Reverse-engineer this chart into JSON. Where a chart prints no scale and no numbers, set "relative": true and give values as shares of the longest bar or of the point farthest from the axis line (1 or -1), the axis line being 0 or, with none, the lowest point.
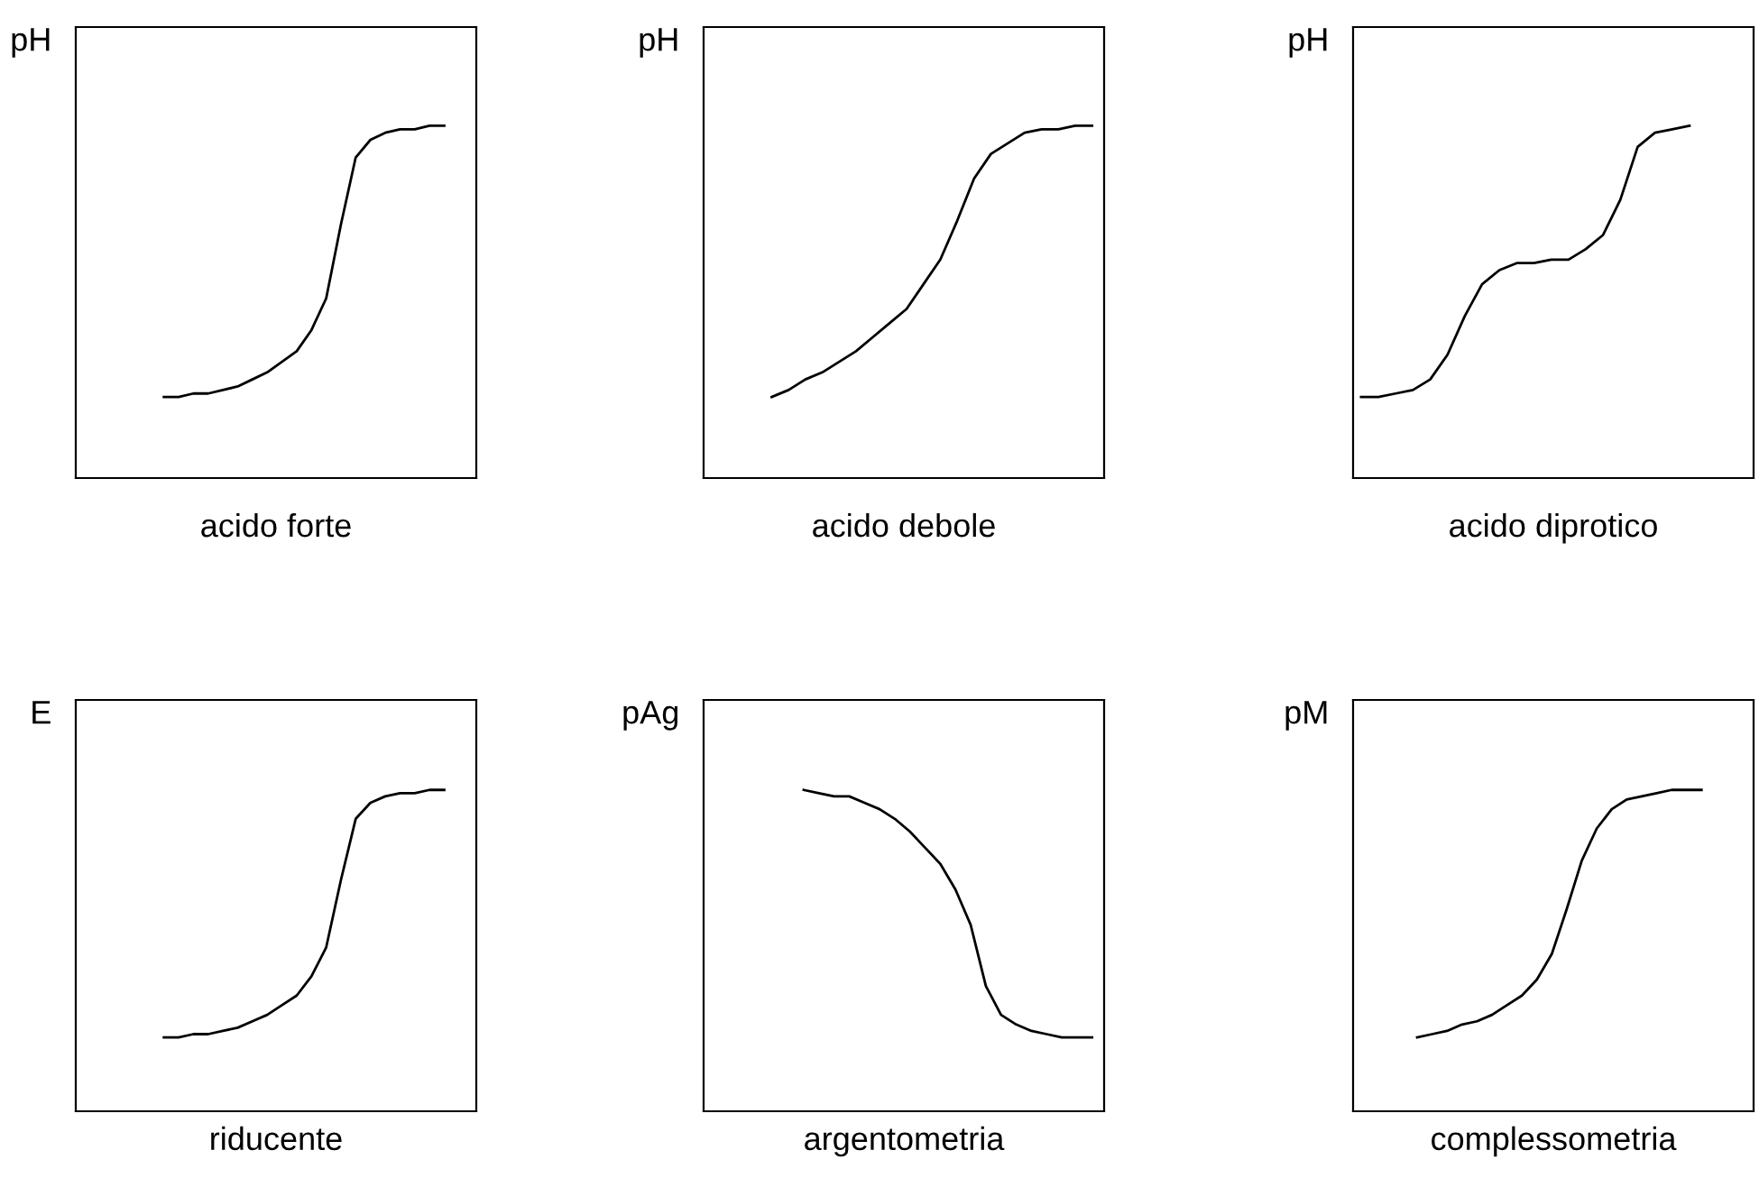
{
  "chart_data": [
    {
      "type": "line",
      "relative": true,
      "ylabel": "pH",
      "xlabel": "acido forte",
      "categories": [
        null,
        null,
        null,
        null,
        null,
        null,
        null,
        null,
        null,
        null,
        null,
        null,
        null,
        null,
        null,
        null,
        null,
        null,
        null,
        null
      ],
      "series": [
        {
          "color": "#000000",
          "values": [
            0.23,
            0.23,
            0.24,
            0.24,
            0.25,
            0.26,
            0.28,
            0.3,
            0.33,
            0.36,
            0.42,
            0.51,
            0.72,
            0.91,
            0.96,
            0.98,
            0.99,
            0.99,
            1,
            1
          ]
        }
      ]
    },
    {
      "type": "line",
      "relative": true,
      "ylabel": "pH",
      "xlabel": "acido debole",
      "categories": [
        null,
        null,
        null,
        null,
        null,
        null,
        null,
        null,
        null,
        null,
        null,
        null,
        null,
        null,
        null,
        null,
        null,
        null,
        null,
        null
      ],
      "series": [
        {
          "color": "#000000",
          "values": [
            0.23,
            0.25,
            0.28,
            0.3,
            0.33,
            0.36,
            0.4,
            0.44,
            0.48,
            0.55,
            0.62,
            0.73,
            0.85,
            0.92,
            0.95,
            0.98,
            0.99,
            0.99,
            1,
            1
          ]
        }
      ]
    },
    {
      "type": "line",
      "relative": true,
      "ylabel": "pH",
      "xlabel": "acido diprotico",
      "categories": [
        null,
        null,
        null,
        null,
        null,
        null,
        null,
        null,
        null,
        null,
        null,
        null,
        null,
        null,
        null,
        null,
        null,
        null,
        null,
        null
      ],
      "series": [
        {
          "color": "#000000",
          "values": [
            0.23,
            0.23,
            0.24,
            0.25,
            0.28,
            0.35,
            0.46,
            0.55,
            0.59,
            0.61,
            0.61,
            0.62,
            0.62,
            0.65,
            0.69,
            0.79,
            0.94,
            0.98,
            0.99,
            1
          ]
        }
      ]
    },
    {
      "type": "line",
      "relative": true,
      "ylabel": "E",
      "xlabel": "riducente",
      "categories": [
        null,
        null,
        null,
        null,
        null,
        null,
        null,
        null,
        null,
        null,
        null,
        null,
        null,
        null,
        null,
        null,
        null,
        null,
        null,
        null
      ],
      "series": [
        {
          "color": "#000000",
          "values": [
            0.23,
            0.23,
            0.24,
            0.24,
            0.25,
            0.26,
            0.28,
            0.3,
            0.33,
            0.36,
            0.42,
            0.51,
            0.72,
            0.91,
            0.96,
            0.98,
            0.99,
            0.99,
            1,
            1
          ]
        }
      ]
    },
    {
      "type": "line",
      "relative": true,
      "ylabel": "pAg",
      "xlabel": "argentometria",
      "categories": [
        null,
        null,
        null,
        null,
        null,
        null,
        null,
        null,
        null,
        null,
        null,
        null,
        null,
        null,
        null,
        null,
        null,
        null,
        null,
        null
      ],
      "series": [
        {
          "color": "#000000",
          "values": [
            1,
            0.99,
            0.98,
            0.98,
            0.96,
            0.94,
            0.91,
            0.87,
            0.82,
            0.77,
            0.69,
            0.58,
            0.39,
            0.3,
            0.27,
            0.25,
            0.24,
            0.23,
            0.23,
            0.23
          ]
        }
      ]
    },
    {
      "type": "line",
      "relative": true,
      "ylabel": "pM",
      "xlabel": "complessometria",
      "categories": [
        null,
        null,
        null,
        null,
        null,
        null,
        null,
        null,
        null,
        null,
        null,
        null,
        null,
        null,
        null,
        null,
        null,
        null,
        null,
        null
      ],
      "series": [
        {
          "color": "#000000",
          "values": [
            0.23,
            0.24,
            0.25,
            0.27,
            0.28,
            0.3,
            0.33,
            0.36,
            0.41,
            0.49,
            0.63,
            0.78,
            0.88,
            0.94,
            0.97,
            0.98,
            0.99,
            1,
            1,
            1
          ]
        }
      ]
    }
  ]
}
